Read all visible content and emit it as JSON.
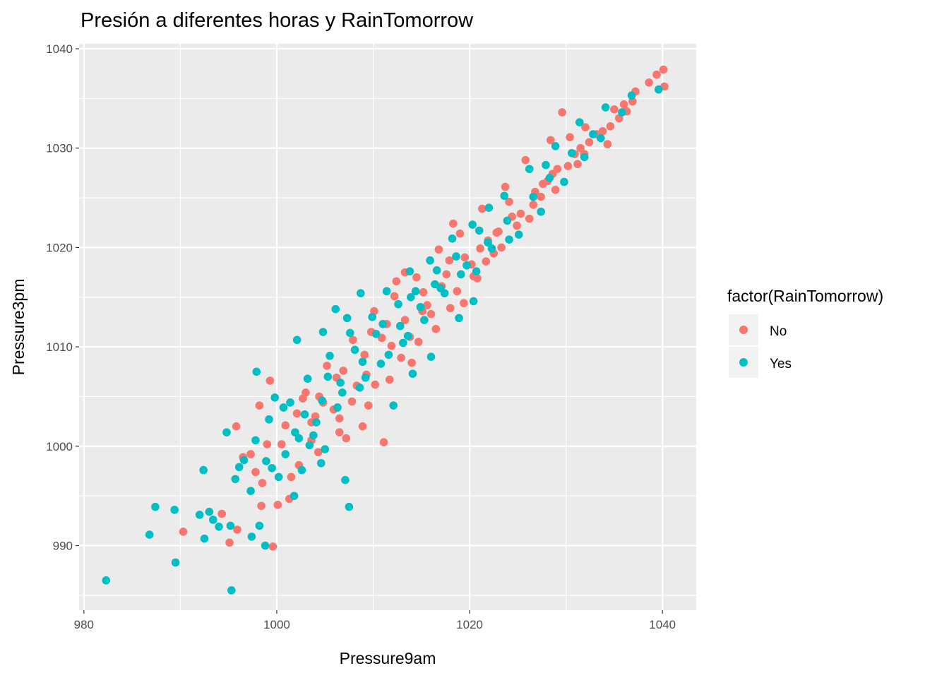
{
  "chart_data": {
    "type": "scatter",
    "title": "Presión a diferentes horas y RainTomorrow",
    "xlabel": "Pressure9am",
    "ylabel": "Pressure3pm",
    "xlim": [
      979.5,
      1043.5
    ],
    "ylim": [
      983.5,
      1040.5
    ],
    "x_ticks": [
      980,
      1000,
      1020,
      1040
    ],
    "y_ticks": [
      990,
      1000,
      1010,
      1020,
      1030,
      1040
    ],
    "x_tick_labels": [
      "980",
      "1000",
      "1020",
      "1040"
    ],
    "y_tick_labels": [
      "990",
      "1000",
      "1010",
      "1020",
      "1030",
      "1040"
    ],
    "grid": true,
    "legend": {
      "title": "factor(RainTomorrow)",
      "placement": "right",
      "entries": [
        "No",
        "Yes"
      ]
    },
    "series": [
      {
        "name": "No",
        "color": "#F8766D",
        "points": [
          [
            990.3,
            991.4
          ],
          [
            995.1,
            990.3
          ],
          [
            999.6,
            989.9
          ],
          [
            1000.1,
            994.1
          ],
          [
            994.3,
            993.2
          ],
          [
            998.4,
            994.0
          ],
          [
            995.9,
            991.6
          ],
          [
            998.2,
            1004.1
          ],
          [
            999.3,
            1006.6
          ],
          [
            997.3,
            999.2
          ],
          [
            995.8,
            1002.0
          ],
          [
            1003.6,
            1000.6
          ],
          [
            1006.5,
            1001.4
          ],
          [
            1008.9,
            1002.0
          ],
          [
            1011.1,
            1000.4
          ],
          [
            1000.5,
            1000.2
          ],
          [
            1002.1,
            1003.3
          ],
          [
            1004.4,
            1005.0
          ],
          [
            1006.9,
            1007.6
          ],
          [
            1009.1,
            1009.2
          ],
          [
            1010.9,
            1010.9
          ],
          [
            1013.3,
            1012.7
          ],
          [
            1015.2,
            1015.5
          ],
          [
            1017.6,
            1017.3
          ],
          [
            1019.5,
            1019.0
          ],
          [
            1021.9,
            1020.7
          ],
          [
            1024.4,
            1023.1
          ],
          [
            1026.8,
            1025.6
          ],
          [
            1028.6,
            1027.4
          ],
          [
            1030.9,
            1029.4
          ],
          [
            1033.2,
            1031.4
          ],
          [
            1035.5,
            1033.0
          ],
          [
            1037.2,
            1035.7
          ],
          [
            1039.4,
            1037.4
          ],
          [
            1040.1,
            1037.9
          ],
          [
            1040.2,
            1036.2
          ],
          [
            1029.6,
            1033.6
          ],
          [
            1013.3,
            1017.5
          ],
          [
            1012.4,
            1016.6
          ],
          [
            1018.3,
            1022.4
          ],
          [
            1023.0,
            1021.6
          ],
          [
            1027.6,
            1026.4
          ],
          [
            1031.9,
            1029.4
          ],
          [
            1025.8,
            1028.8
          ],
          [
            1032.0,
            1032.1
          ],
          [
            1034.3,
            1030.4
          ],
          [
            1036.9,
            1034.7
          ],
          [
            1035.0,
            1033.9
          ],
          [
            1021.7,
            1018.6
          ],
          [
            1019.4,
            1014.4
          ],
          [
            1016.5,
            1011.8
          ],
          [
            1014.0,
            1008.4
          ],
          [
            1011.7,
            1006.7
          ],
          [
            1009.5,
            1004.1
          ],
          [
            1007.2,
            1000.8
          ],
          [
            1004.3,
            999.4
          ],
          [
            1002.3,
            998.1
          ],
          [
            1001.5,
            996.9
          ],
          [
            1004.8,
            1004.4
          ],
          [
            1006.5,
            1002.8
          ],
          [
            1007.8,
            1004.5
          ],
          [
            1010.2,
            1006.2
          ],
          [
            1012.9,
            1008.9
          ],
          [
            1014.7,
            1010.5
          ],
          [
            1016.0,
            1013.3
          ],
          [
            1018.7,
            1015.6
          ],
          [
            1020.4,
            1017.1
          ],
          [
            1022.5,
            1019.4
          ],
          [
            1024.9,
            1022.2
          ],
          [
            1026.6,
            1024.3
          ],
          [
            1028.1,
            1026.7
          ],
          [
            1030.2,
            1028.2
          ],
          [
            1032.4,
            1030.6
          ],
          [
            1034.6,
            1032.2
          ],
          [
            1036.3,
            1033.7
          ],
          [
            1003.0,
            1005.4
          ],
          [
            1005.2,
            1008.1
          ],
          [
            1007.9,
            1010.7
          ],
          [
            1010.1,
            1013.6
          ],
          [
            1012.2,
            1015.1
          ],
          [
            1014.5,
            1017.0
          ],
          [
            1016.8,
            1019.8
          ],
          [
            1019.0,
            1021.4
          ],
          [
            1021.3,
            1023.9
          ],
          [
            1023.7,
            1026.1
          ],
          [
            1009.8,
            1011.5
          ],
          [
            1011.4,
            1012.3
          ],
          [
            1015.6,
            1014.2
          ],
          [
            1017.1,
            1016.1
          ],
          [
            1020.2,
            1018.3
          ],
          [
            1022.8,
            1021.5
          ],
          [
            1025.3,
            1023.4
          ],
          [
            1027.4,
            1025.1
          ],
          [
            1029.1,
            1027.9
          ],
          [
            1031.5,
            1030.0
          ],
          [
            1013.8,
            1011.0
          ],
          [
            1018.0,
            1013.9
          ],
          [
            1020.8,
            1016.9
          ],
          [
            1023.3,
            1020.0
          ],
          [
            1026.2,
            1022.9
          ],
          [
            1028.9,
            1025.8
          ],
          [
            1031.2,
            1028.4
          ],
          [
            1033.8,
            1031.7
          ],
          [
            1003.6,
            1002.4
          ],
          [
            1005.9,
            1003.7
          ],
          [
            1008.3,
            1006.1
          ],
          [
            1002.7,
            1004.8
          ],
          [
            1000.9,
            1002.1
          ],
          [
            1006.2,
            1006.9
          ],
          [
            1011.9,
            1010.1
          ],
          [
            1017.9,
            1018.7
          ],
          [
            1024.1,
            1024.6
          ],
          [
            1030.4,
            1031.1
          ],
          [
            1036.0,
            1034.4
          ],
          [
            1038.6,
            1036.6
          ],
          [
            997.8,
            997.4
          ],
          [
            996.5,
            998.9
          ],
          [
            999.0,
            1000.2
          ],
          [
            1001.3,
            994.7
          ],
          [
            998.5,
            996.3
          ],
          [
            1028.4,
            1030.8
          ],
          [
            1021.1,
            1019.9
          ],
          [
            1015.1,
            1013.6
          ],
          [
            1009.3,
            1007.2
          ],
          [
            1004.0,
            1003.0
          ]
        ]
      },
      {
        "name": "Yes",
        "color": "#00BFC4",
        "points": [
          [
            982.3,
            986.5
          ],
          [
            986.8,
            991.1
          ],
          [
            987.4,
            993.9
          ],
          [
            989.4,
            993.6
          ],
          [
            989.5,
            988.3
          ],
          [
            992.4,
            997.6
          ],
          [
            992.0,
            993.1
          ],
          [
            992.5,
            990.7
          ],
          [
            993.0,
            993.4
          ],
          [
            993.4,
            992.6
          ],
          [
            994.0,
            991.9
          ],
          [
            995.3,
            985.5
          ],
          [
            995.2,
            992.0
          ],
          [
            997.4,
            990.9
          ],
          [
            998.2,
            992.0
          ],
          [
            998.8,
            990.0
          ],
          [
            994.8,
            1001.4
          ],
          [
            997.9,
            1007.5
          ],
          [
            999.8,
            1004.9
          ],
          [
            1001.4,
            1004.4
          ],
          [
            1002.1,
            1010.7
          ],
          [
            1004.8,
            1011.5
          ],
          [
            1006.1,
            1013.8
          ],
          [
            1007.3,
            1012.9
          ],
          [
            1008.7,
            1015.4
          ],
          [
            1011.4,
            1015.6
          ],
          [
            1013.8,
            1017.6
          ],
          [
            1015.9,
            1018.7
          ],
          [
            1018.2,
            1020.9
          ],
          [
            1020.3,
            1022.3
          ],
          [
            1022.0,
            1024.0
          ],
          [
            1023.6,
            1025.2
          ],
          [
            1026.2,
            1027.9
          ],
          [
            1028.9,
            1030.2
          ],
          [
            1031.4,
            1032.6
          ],
          [
            1034.1,
            1034.1
          ],
          [
            1036.8,
            1035.3
          ],
          [
            1039.6,
            1035.9
          ],
          [
            1005.0,
            999.7
          ],
          [
            1003.8,
            1001.1
          ],
          [
            1002.6,
            997.6
          ],
          [
            1000.2,
            996.9
          ],
          [
            998.9,
            998.5
          ],
          [
            997.3,
            995.5
          ],
          [
            995.7,
            996.7
          ],
          [
            996.6,
            998.6
          ],
          [
            1001.8,
            995.0
          ],
          [
            1004.6,
            998.3
          ],
          [
            1007.1,
            996.6
          ],
          [
            1007.5,
            993.9
          ],
          [
            1012.1,
            1004.1
          ],
          [
            1014.1,
            1007.3
          ],
          [
            1016.0,
            1009.0
          ],
          [
            1018.9,
            1012.9
          ],
          [
            1020.4,
            1014.6
          ],
          [
            1020.7,
            1017.6
          ],
          [
            1022.3,
            1019.9
          ],
          [
            1025.1,
            1021.3
          ],
          [
            1027.4,
            1023.6
          ],
          [
            1029.8,
            1026.6
          ],
          [
            1031.9,
            1029.1
          ],
          [
            1033.6,
            1031.0
          ],
          [
            1035.8,
            1033.6
          ],
          [
            1024.1,
            1020.8
          ],
          [
            1019.1,
            1017.3
          ],
          [
            1017.4,
            1015.4
          ],
          [
            1015.3,
            1012.7
          ],
          [
            1013.1,
            1010.4
          ],
          [
            1010.8,
            1008.3
          ],
          [
            1008.6,
            1005.9
          ],
          [
            1006.3,
            1003.9
          ],
          [
            1004.1,
            1002.4
          ],
          [
            1002.3,
            1000.8
          ],
          [
            1000.9,
            999.2
          ],
          [
            999.5,
            997.8
          ],
          [
            1003.2,
            1006.8
          ],
          [
            1005.5,
            1009.1
          ],
          [
            1007.6,
            1011.4
          ],
          [
            1009.9,
            1013.0
          ],
          [
            1012.6,
            1014.3
          ],
          [
            1014.4,
            1015.6
          ],
          [
            1016.6,
            1017.7
          ],
          [
            1018.6,
            1019.1
          ],
          [
            1010.3,
            1011.3
          ],
          [
            1012.8,
            1012.1
          ],
          [
            1014.9,
            1014.0
          ],
          [
            1017.0,
            1015.9
          ],
          [
            1019.7,
            1018.2
          ],
          [
            1021.9,
            1020.5
          ],
          [
            1023.9,
            1022.7
          ],
          [
            1026.6,
            1025.1
          ],
          [
            1028.3,
            1027.0
          ],
          [
            1030.6,
            1029.5
          ],
          [
            1032.8,
            1031.4
          ],
          [
            1011.6,
            1009.2
          ],
          [
            1013.6,
            1011.1
          ],
          [
            1009.2,
            1006.9
          ],
          [
            1006.8,
            1005.4
          ],
          [
            1005.3,
            1007.0
          ],
          [
            1008.1,
            1009.7
          ],
          [
            1011.0,
            1012.3
          ],
          [
            1013.9,
            1015.0
          ],
          [
            1016.4,
            1016.3
          ],
          [
            1021.0,
            1021.7
          ],
          [
            1027.9,
            1028.3
          ],
          [
            996.1,
            997.9
          ],
          [
            997.8,
            1000.6
          ],
          [
            999.2,
            1002.7
          ],
          [
            1000.7,
            1003.9
          ],
          [
            1002.9,
            1003.2
          ],
          [
            1004.7,
            1004.6
          ],
          [
            1006.6,
            1006.4
          ],
          [
            1008.9,
            1008.5
          ],
          [
            1001.9,
            1001.4
          ],
          [
            1003.4,
            1000.1
          ]
        ]
      }
    ]
  }
}
